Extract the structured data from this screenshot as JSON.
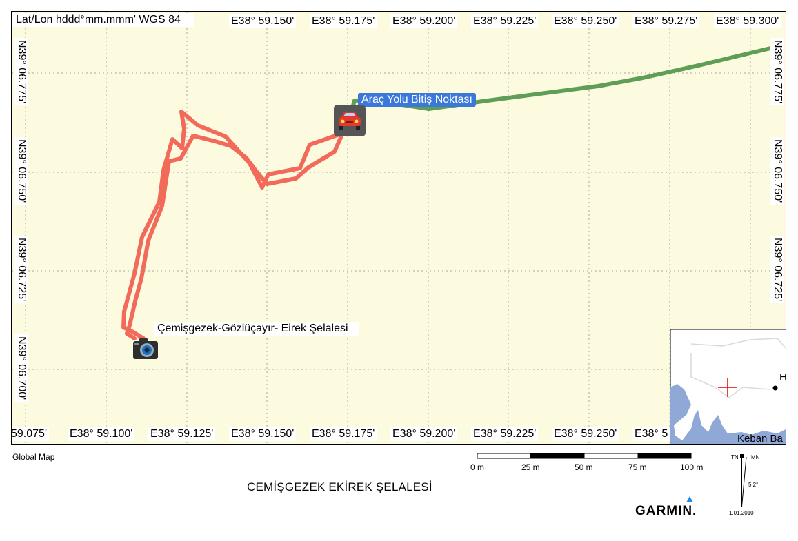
{
  "map": {
    "projection_label": "Lat/Lon hddd°mm.mmm' WGS 84",
    "top_lon_labels": [
      "E38° 59.150'",
      "E38° 59.175'",
      "E38° 59.200'",
      "E38° 59.225'",
      "E38° 59.250'",
      "E38° 59.275'",
      "E38° 59.300'"
    ],
    "bottom_lon_labels": [
      "59.075'",
      "E38° 59.100'",
      "E38° 59.125'",
      "E38° 59.150'",
      "E38° 59.175'",
      "E38° 59.200'",
      "E38° 59.225'",
      "E38° 59.250'",
      "E38° 5"
    ],
    "left_lat_labels": [
      "N39° 06.775'",
      "N39° 06.750'",
      "N39° 06.725'",
      "N39° 06.700'"
    ],
    "right_lat_labels": [
      "N39° 06.775'",
      "N39° 06.750'",
      "N39° 06.725'"
    ],
    "waypoints": {
      "end_label": "Araç Yolu Bitiş Noktası",
      "end_icon": "car-icon",
      "start_label": "Çemişgezek-Gözlüçayır- Eirek Şelalesi",
      "start_icon": "camera-icon"
    },
    "colors": {
      "background": "#fcfbe0",
      "track": "#f26a5a",
      "road": "#5f9e57",
      "water": "#8fa8d6",
      "grid": "#a8a8a8",
      "waypoint_label": "#3a78d9"
    },
    "overview": {
      "label_partial": "Keban Ba",
      "town_partial": "H"
    }
  },
  "footer": {
    "global_map_label": "Global Map",
    "title": "CEMİŞGEZEK EKİREK ŞELALESİ",
    "scale_labels": [
      "0 m",
      "25 m",
      "50 m",
      "75 m",
      "100 m"
    ],
    "north": {
      "tn": "TN",
      "mn": "MN",
      "declination": "5.2°",
      "date": "1.01.2010"
    },
    "brand": "GARMIN."
  }
}
